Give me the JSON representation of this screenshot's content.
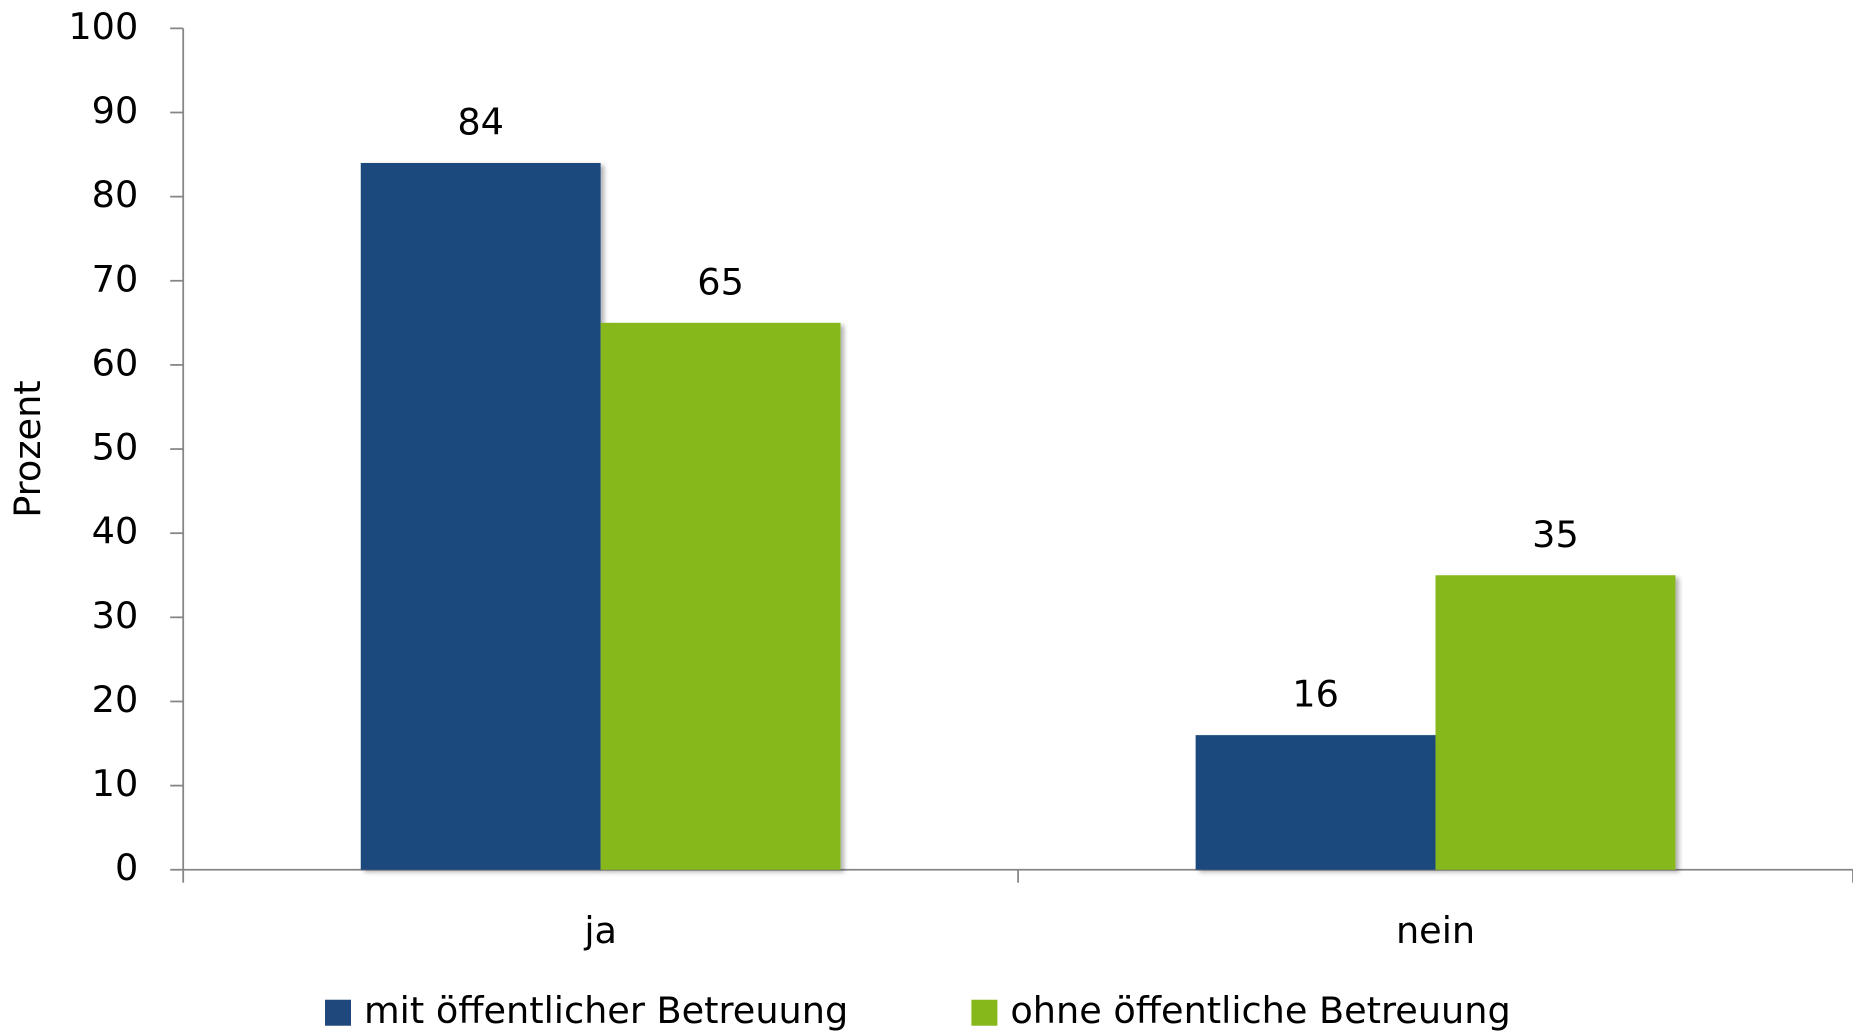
{
  "chart_data": {
    "type": "bar",
    "y_label": "Prozent",
    "categories": [
      "ja",
      "nein"
    ],
    "series": [
      {
        "name": "mit öffentlicher Betreuung",
        "color": "#1f497d",
        "values": [
          84,
          16
        ]
      },
      {
        "name": "ohne öffentliche Betreuung",
        "color": "#86b81b",
        "values": [
          65,
          35
        ]
      }
    ],
    "ylim": [
      0,
      100
    ],
    "yticks": [
      0,
      10,
      20,
      30,
      40,
      50,
      60,
      70,
      80,
      90,
      100
    ],
    "legend": "bottom",
    "grid": false
  }
}
